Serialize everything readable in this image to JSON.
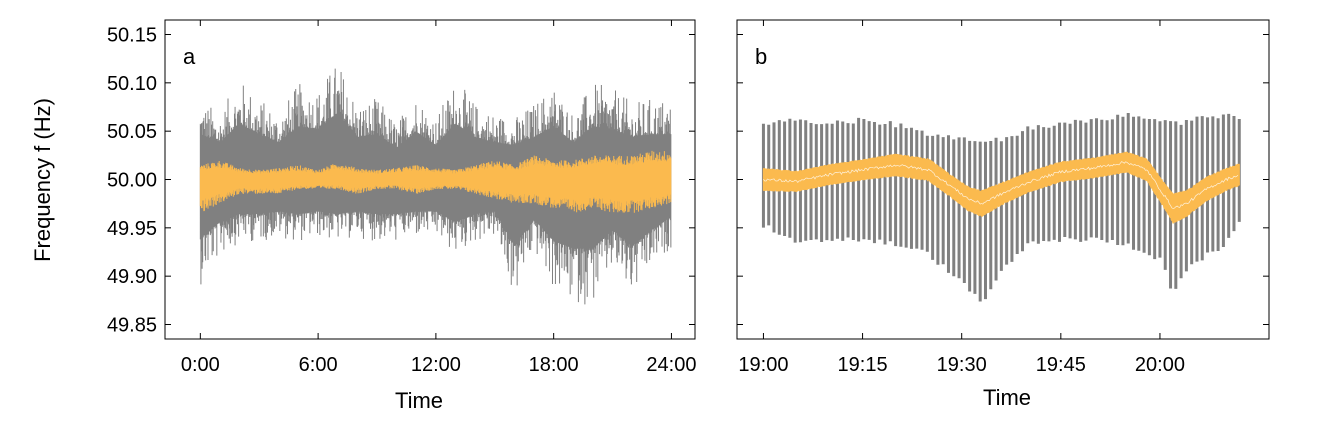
{
  "chart_data": [
    {
      "panel": "a",
      "type": "line",
      "xlabel": "Time",
      "ylabel": "Frequency f (Hz)",
      "x_ticks": [
        "0:00",
        "6:00",
        "12:00",
        "18:00",
        "24:00"
      ],
      "x_tick_hours": [
        0,
        6,
        12,
        18,
        24
      ],
      "xlim_hours": [
        -1.8,
        25.2
      ],
      "y_ticks": [
        "49.85",
        "49.90",
        "49.95",
        "50.00",
        "50.05",
        "50.10",
        "50.15"
      ],
      "ylim": [
        49.835,
        50.165
      ],
      "series": [
        {
          "color": "#808080",
          "x_hours": [
            0,
            1,
            2,
            3,
            4,
            5,
            6,
            7,
            8,
            9,
            10,
            11,
            12,
            13,
            14,
            15,
            16,
            17,
            18,
            19,
            20,
            21,
            22,
            23,
            24
          ],
          "max": [
            50.085,
            50.07,
            50.105,
            50.085,
            50.07,
            50.1,
            50.095,
            50.125,
            50.08,
            50.085,
            50.06,
            50.09,
            50.065,
            50.105,
            50.08,
            50.07,
            50.065,
            50.08,
            50.1,
            50.07,
            50.1,
            50.095,
            50.08,
            50.085,
            50.085
          ],
          "min": [
            49.89,
            49.92,
            49.935,
            49.935,
            49.94,
            49.935,
            49.94,
            49.935,
            49.94,
            49.935,
            49.935,
            49.94,
            49.94,
            49.92,
            49.935,
            49.94,
            49.875,
            49.925,
            49.885,
            49.87,
            49.87,
            49.905,
            49.875,
            49.905,
            49.93
          ]
        },
        {
          "color": "#FBBA4E",
          "x_hours": [
            0,
            1,
            2,
            3,
            4,
            5,
            6,
            7,
            8,
            9,
            10,
            11,
            12,
            13,
            14,
            15,
            16,
            17,
            18,
            19,
            20,
            21,
            22,
            23,
            24
          ],
          "max": [
            50.015,
            50.02,
            50.012,
            50.01,
            50.012,
            50.015,
            50.01,
            50.018,
            50.012,
            50.01,
            50.012,
            50.015,
            50.012,
            50.01,
            50.015,
            50.02,
            50.015,
            50.025,
            50.02,
            50.02,
            50.025,
            50.025,
            50.025,
            50.03,
            50.03
          ],
          "min": [
            49.965,
            49.975,
            49.985,
            49.985,
            49.985,
            49.99,
            49.99,
            49.99,
            49.985,
            49.99,
            49.99,
            49.985,
            49.99,
            49.99,
            49.985,
            49.98,
            49.975,
            49.975,
            49.97,
            49.965,
            49.97,
            49.965,
            49.965,
            49.97,
            49.975
          ]
        }
      ]
    },
    {
      "panel": "b",
      "type": "line",
      "xlabel": "Time",
      "ylabel": "Frequency f (Hz)",
      "x_ticks": [
        "19:00",
        "19:15",
        "19:30",
        "19:45",
        "20:00"
      ],
      "x_tick_minutes": [
        0,
        15,
        30,
        45,
        60
      ],
      "xlim_minutes": [
        -4,
        76.5
      ],
      "y_ticks": [
        "49.85",
        "49.90",
        "49.95",
        "50.00",
        "50.05",
        "50.10",
        "50.15"
      ],
      "ylim": [
        49.835,
        50.165
      ],
      "series": [
        {
          "color": "#808080",
          "x_minutes": [
            0,
            5,
            10,
            15,
            20,
            25,
            30,
            33,
            36,
            40,
            45,
            50,
            55,
            60,
            62,
            65,
            70,
            72
          ],
          "max": [
            50.06,
            50.065,
            50.06,
            50.065,
            50.06,
            50.05,
            50.045,
            50.04,
            50.045,
            50.055,
            50.06,
            50.065,
            50.07,
            50.065,
            50.06,
            50.065,
            50.07,
            50.065
          ],
          "min": [
            49.95,
            49.93,
            49.935,
            49.935,
            49.93,
            49.92,
            49.89,
            49.87,
            49.9,
            49.93,
            49.935,
            49.935,
            49.93,
            49.915,
            49.88,
            49.91,
            49.93,
            49.955
          ]
        },
        {
          "color": "#FBBA4E",
          "x_minutes": [
            0,
            5,
            10,
            15,
            20,
            25,
            28,
            31,
            33,
            36,
            40,
            45,
            50,
            55,
            58,
            61,
            62,
            64,
            67,
            70,
            72
          ],
          "center": [
            50.0,
            49.998,
            50.005,
            50.01,
            50.015,
            50.01,
            49.995,
            49.98,
            49.975,
            49.985,
            49.997,
            50.008,
            50.012,
            50.018,
            50.01,
            49.98,
            49.97,
            49.975,
            49.99,
            50.0,
            50.005
          ],
          "half_width": [
            0.012,
            0.011,
            0.011,
            0.011,
            0.012,
            0.012,
            0.012,
            0.013,
            0.014,
            0.012,
            0.011,
            0.011,
            0.011,
            0.011,
            0.012,
            0.014,
            0.016,
            0.014,
            0.013,
            0.012,
            0.012
          ],
          "oscillation_period_minutes": 0.8
        }
      ]
    }
  ]
}
